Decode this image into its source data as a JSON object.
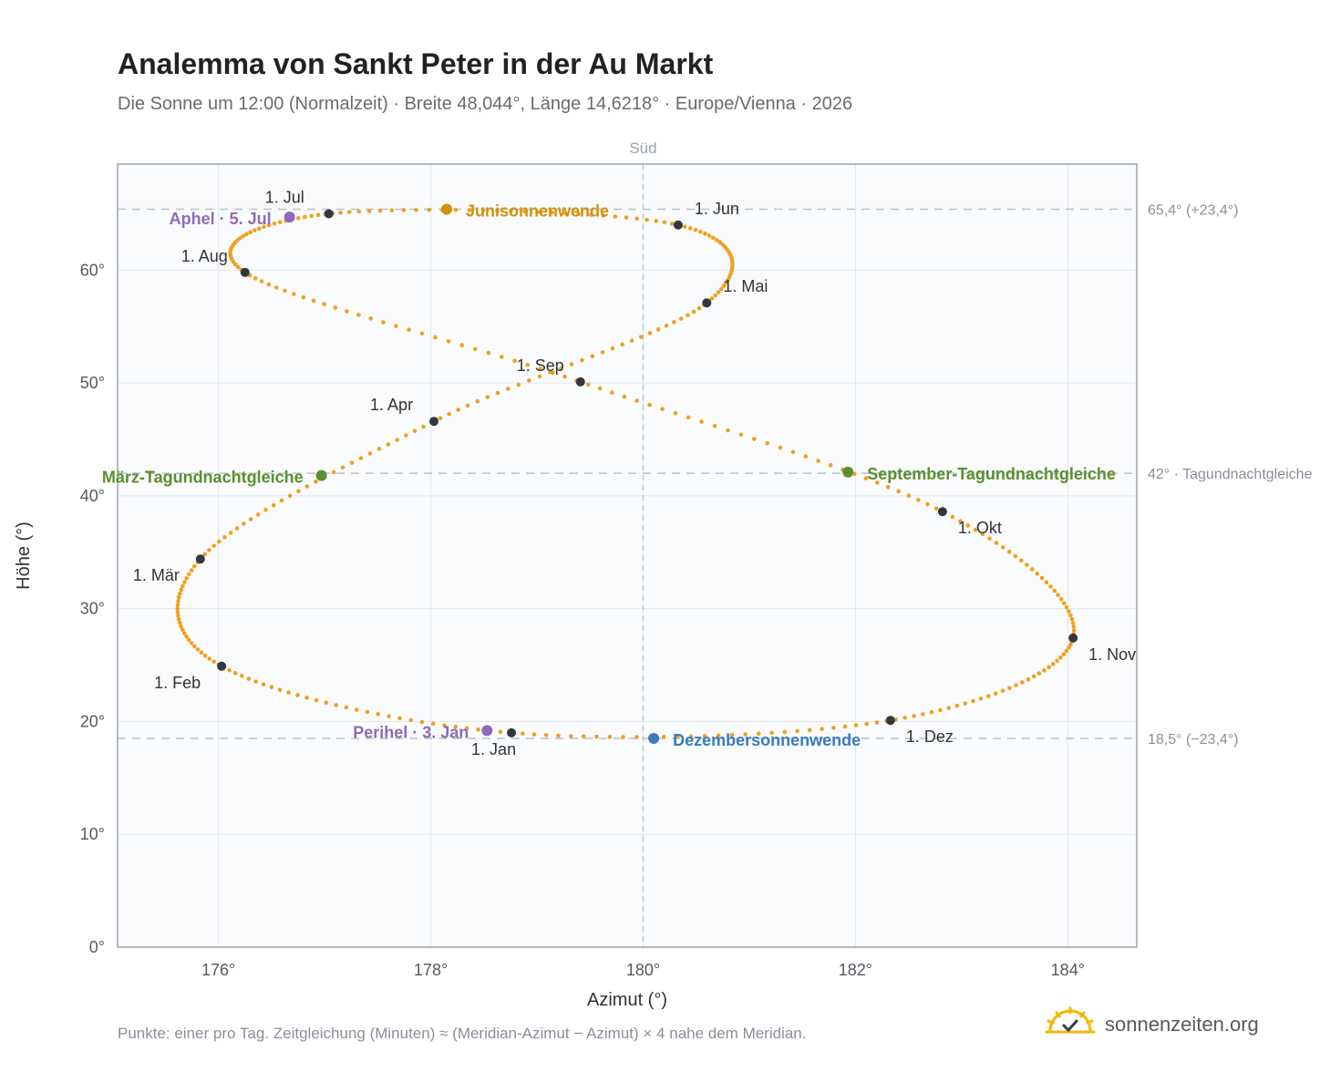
{
  "header": {
    "title": "Analemma von Sankt Peter in der Au Markt",
    "subtitle": "Die Sonne um 12:00 (Normalzeit) · Breite 48,044°, Länge 14,6218° · Europe/Vienna · 2026"
  },
  "footer": {
    "note": "Punkte: einer pro Tag. Zeitgleichung (Minuten) ≈ (Meridian-Azimut − Azimut) × 4 nahe dem Meridian.",
    "brand": "sonnenzeiten.org"
  },
  "colors": {
    "curve": "#f0a020",
    "month_marker": "#333840",
    "apsis": "#8e6bb8",
    "june_solstice": "#d4900a",
    "december_solstice": "#3a7bbf",
    "equinox": "#5a8f2e",
    "axis_text": "#555a60",
    "grid": "#e3e7ec",
    "plot_bg": "#f9fbfd",
    "frame": "#9aa3ae"
  },
  "chart_data": {
    "type": "scatter",
    "xlabel": "Azimut (°)",
    "ylabel": "Höhe (°)",
    "xlim": [
      175.05,
      184.65
    ],
    "ylim": [
      0,
      69.4
    ],
    "x_ticks": [
      {
        "value": 176,
        "label": "176°"
      },
      {
        "value": 178,
        "label": "178°"
      },
      {
        "value": 180,
        "label": "180°"
      },
      {
        "value": 182,
        "label": "182°"
      },
      {
        "value": 184,
        "label": "184°"
      }
    ],
    "y_ticks": [
      {
        "value": 0,
        "label": "0°"
      },
      {
        "value": 10,
        "label": "10°"
      },
      {
        "value": 20,
        "label": "20°"
      },
      {
        "value": 30,
        "label": "30°"
      },
      {
        "value": 40,
        "label": "40°"
      },
      {
        "value": 50,
        "label": "50°"
      },
      {
        "value": 60,
        "label": "60°"
      }
    ],
    "grid": true,
    "meridian": {
      "azimuth": 180,
      "label": "Süd"
    },
    "reference_lines": [
      {
        "altitude": 65.4,
        "label": "65,4° (+23,4°)"
      },
      {
        "altitude": 42.0,
        "label": "42° · Tagundnachtgleiche"
      },
      {
        "altitude": 18.5,
        "label": "18,5° (−23,4°)"
      }
    ],
    "series": [
      {
        "points": [
          [
            178.76,
            19.0
          ],
          [
            176.03,
            24.9
          ],
          [
            175.83,
            34.4
          ],
          [
            178.03,
            46.6
          ],
          [
            180.6,
            57.1
          ],
          [
            180.33,
            64.0
          ],
          [
            177.04,
            65.0
          ],
          [
            176.25,
            59.8
          ],
          [
            179.41,
            50.1
          ],
          [
            182.82,
            38.6
          ],
          [
            184.05,
            27.4
          ],
          [
            182.33,
            20.1
          ],
          [
            178.76,
            19.0
          ]
        ]
      }
    ],
    "month_markers": [
      {
        "label": "1. Jan",
        "az": 178.76,
        "alt": 19.0,
        "pos": "below"
      },
      {
        "label": "1. Feb",
        "az": 176.03,
        "alt": 24.9,
        "pos": "below-left"
      },
      {
        "label": "1. Mär",
        "az": 175.83,
        "alt": 34.4,
        "pos": "below-left"
      },
      {
        "label": "1. Apr",
        "az": 178.03,
        "alt": 46.6,
        "pos": "above-left"
      },
      {
        "label": "1. Mai",
        "az": 180.6,
        "alt": 57.1,
        "pos": "above-right"
      },
      {
        "label": "1. Jun",
        "az": 180.33,
        "alt": 64.0,
        "pos": "above-right"
      },
      {
        "label": "1. Jul",
        "az": 177.04,
        "alt": 65.0,
        "pos": "above-left"
      },
      {
        "label": "1. Aug",
        "az": 176.25,
        "alt": 59.8,
        "pos": "above-left"
      },
      {
        "label": "1. Sep",
        "az": 179.41,
        "alt": 50.1,
        "pos": "above-left"
      },
      {
        "label": "1. Okt",
        "az": 182.82,
        "alt": 38.6,
        "pos": "below-right"
      },
      {
        "label": "1. Nov",
        "az": 184.05,
        "alt": 27.4,
        "pos": "below-right"
      },
      {
        "label": "1. Dez",
        "az": 182.33,
        "alt": 20.1,
        "pos": "below-right"
      }
    ],
    "events": [
      {
        "label": "Junisonnenwende",
        "az": 178.15,
        "alt": 65.4,
        "color": "#d4900a",
        "side": "right"
      },
      {
        "label": "Dezembersonnenwende",
        "az": 180.1,
        "alt": 18.5,
        "color": "#3a7bbf",
        "side": "right"
      },
      {
        "label": "März-Tagundnachtgleiche",
        "az": 176.97,
        "alt": 41.8,
        "color": "#5a8f2e",
        "side": "left"
      },
      {
        "label": "September-Tagundnachtgleiche",
        "az": 181.93,
        "alt": 42.1,
        "color": "#5a8f2e",
        "side": "right"
      },
      {
        "label": "Aphel · 5. Jul",
        "az": 176.67,
        "alt": 64.7,
        "color": "#8e6bb8",
        "side": "left"
      },
      {
        "label": "Perihel · 3. Jan",
        "az": 178.53,
        "alt": 19.2,
        "color": "#8e6bb8",
        "side": "left"
      }
    ]
  }
}
